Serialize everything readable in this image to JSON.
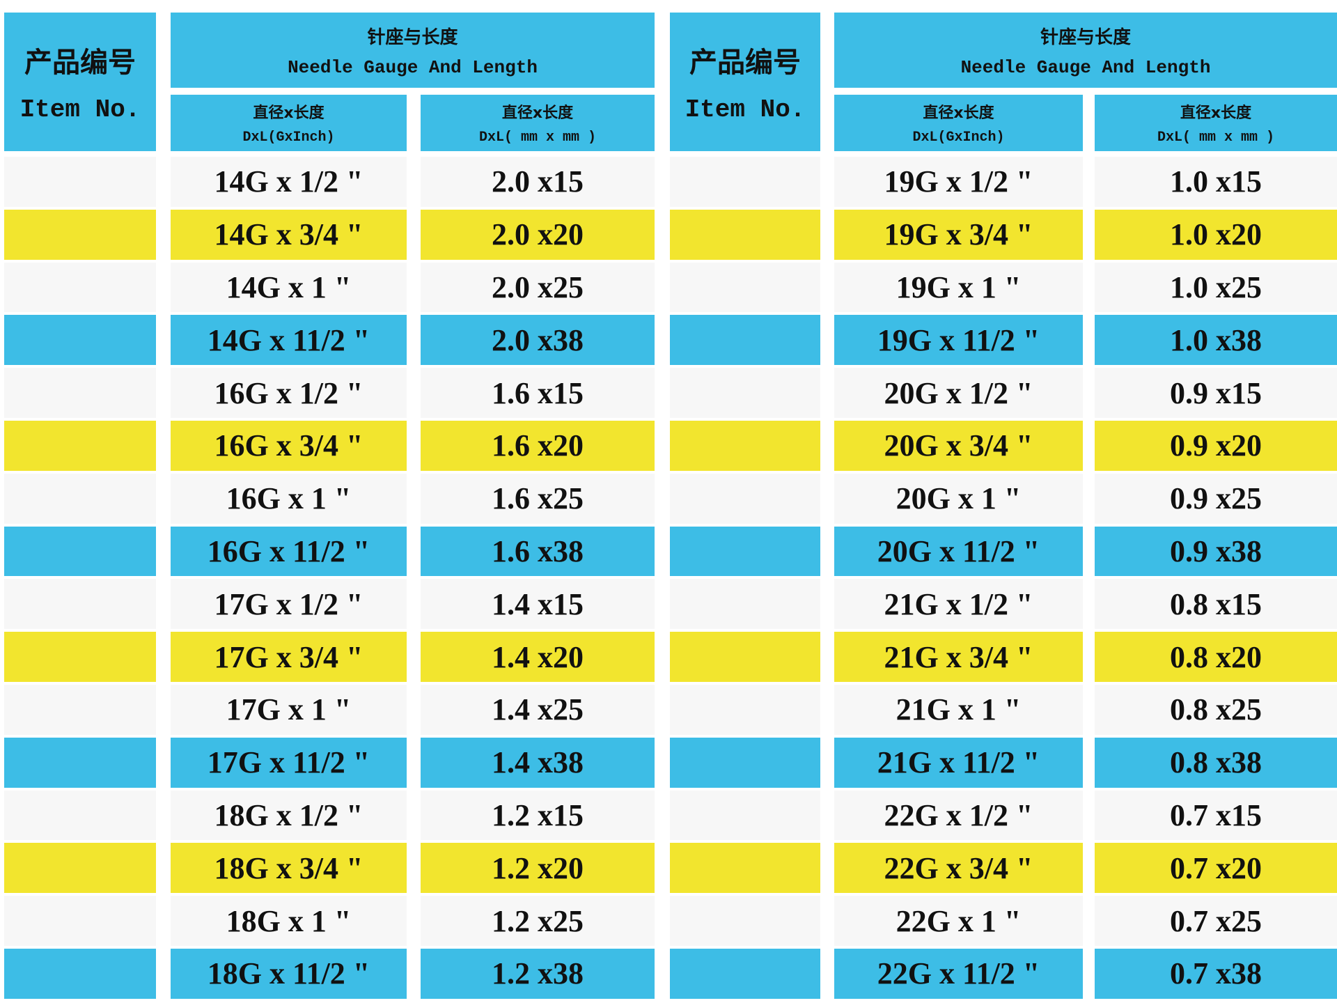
{
  "tables": [
    {
      "header": {
        "item_cn": "产品编号",
        "item_en": "Item No.",
        "group_cn": "针座与长度",
        "group_en": "Needle Gauge And Length",
        "col1_cn": "直径x长度",
        "col1_en": "DxL(GxInch)",
        "col2_cn": "直径x长度",
        "col2_en": "DxL( mm x mm )"
      },
      "rows": [
        [
          "14G x 1/2 \"",
          "2.0 x15"
        ],
        [
          "14G x 3/4 \"",
          "2.0 x20"
        ],
        [
          "14G x 1 \"",
          "2.0 x25"
        ],
        [
          "14G x 11/2 \"",
          "2.0 x38"
        ],
        [
          "16G x 1/2 \"",
          "1.6 x15"
        ],
        [
          "16G x 3/4 \"",
          "1.6 x20"
        ],
        [
          "16G x 1 \"",
          "1.6 x25"
        ],
        [
          "16G x 11/2 \"",
          "1.6 x38"
        ],
        [
          "17G x 1/2 \"",
          "1.4 x15"
        ],
        [
          "17G x 3/4 \"",
          "1.4 x20"
        ],
        [
          "17G x 1 \"",
          "1.4 x25"
        ],
        [
          "17G x 11/2 \"",
          "1.4 x38"
        ],
        [
          "18G x 1/2 \"",
          "1.2 x15"
        ],
        [
          "18G x 3/4 \"",
          "1.2 x20"
        ],
        [
          "18G x 1 \"",
          "1.2 x25"
        ],
        [
          "18G x 11/2 \"",
          "1.2 x38"
        ]
      ]
    },
    {
      "header": {
        "item_cn": "产品编号",
        "item_en": "Item No.",
        "group_cn": "针座与长度",
        "group_en": "Needle Gauge And Length",
        "col1_cn": "直径x长度",
        "col1_en": "DxL(GxInch)",
        "col2_cn": "直径x长度",
        "col2_en": "DxL( mm x mm )"
      },
      "rows": [
        [
          "19G x 1/2 \"",
          "1.0 x15"
        ],
        [
          "19G x 3/4 \"",
          "1.0 x20"
        ],
        [
          "19G x 1 \"",
          "1.0 x25"
        ],
        [
          "19G x 11/2 \"",
          "1.0 x38"
        ],
        [
          "20G x 1/2 \"",
          "0.9 x15"
        ],
        [
          "20G x 3/4 \"",
          "0.9 x20"
        ],
        [
          "20G x 1 \"",
          "0.9 x25"
        ],
        [
          "20G x 11/2 \"",
          "0.9 x38"
        ],
        [
          "21G x 1/2 \"",
          "0.8 x15"
        ],
        [
          "21G x 3/4 \"",
          "0.8 x20"
        ],
        [
          "21G x 1 \"",
          "0.8 x25"
        ],
        [
          "21G x 11/2 \"",
          "0.8 x38"
        ],
        [
          "22G x 1/2 \"",
          "0.7 x15"
        ],
        [
          "22G x 3/4 \"",
          "0.7 x20"
        ],
        [
          "22G x 1 \"",
          "0.7 x25"
        ],
        [
          "22G x 11/2 \"",
          "0.7 x38"
        ]
      ]
    }
  ]
}
